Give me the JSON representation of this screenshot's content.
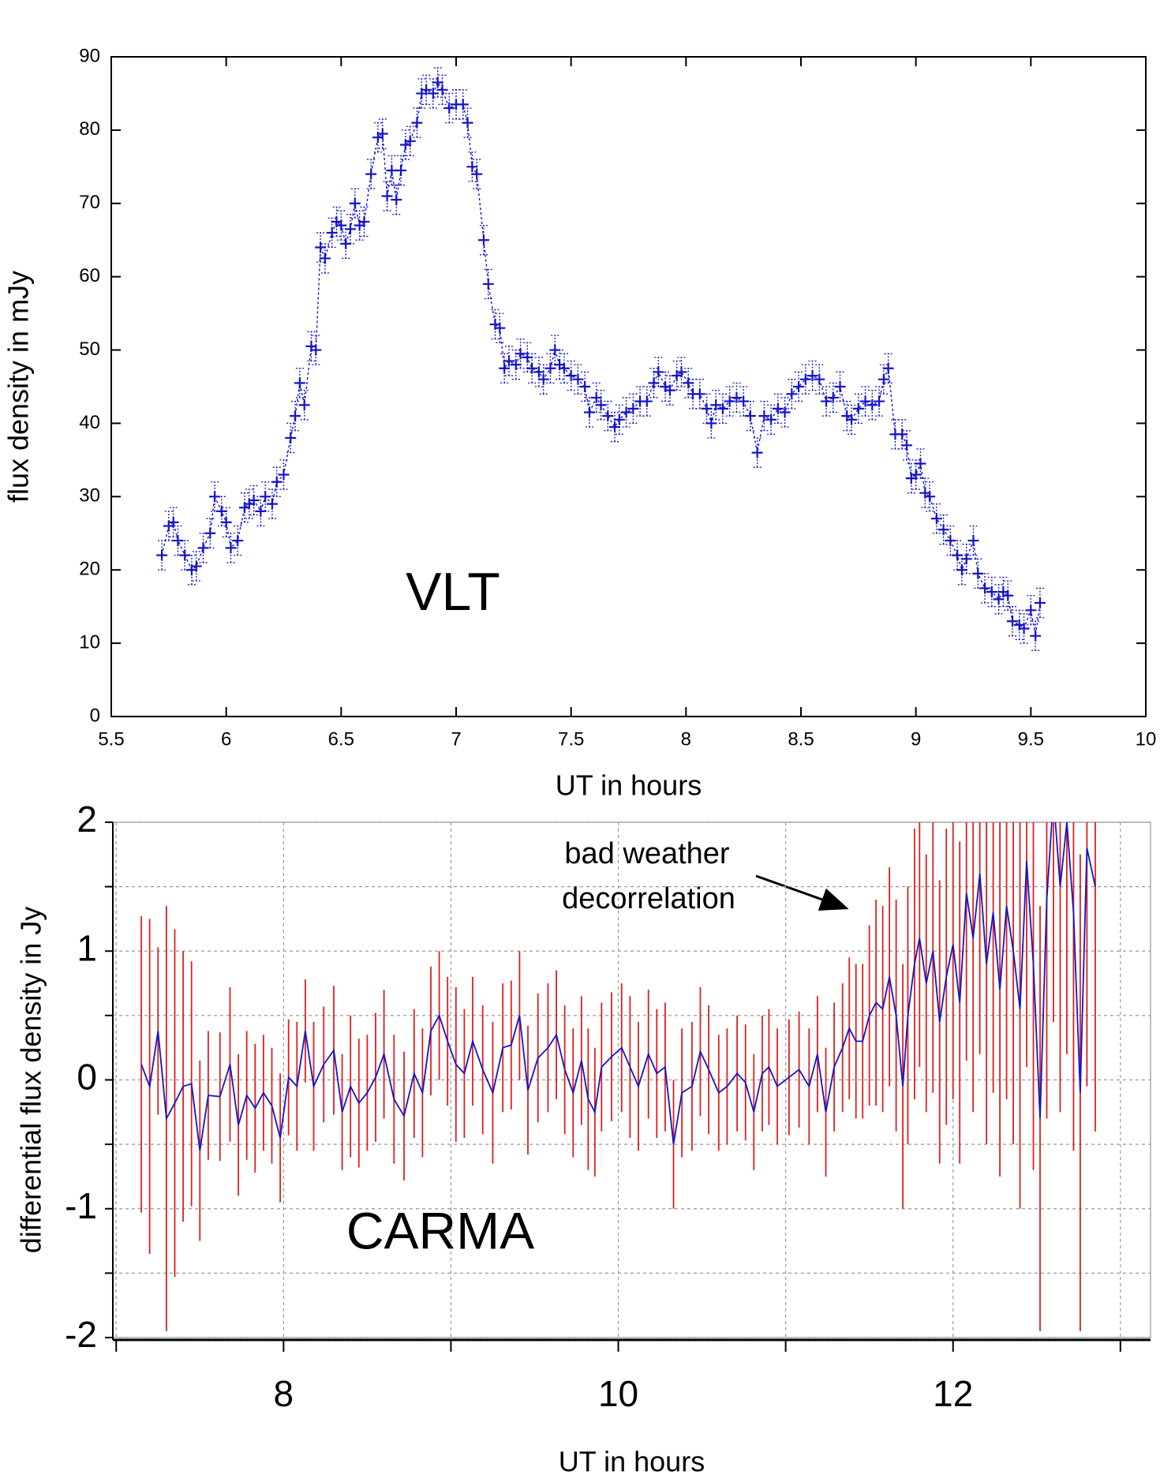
{
  "chart_data": [
    {
      "type": "line",
      "xlabel": "UT in hours",
      "ylabel": "flux density in mJy",
      "label": "VLT",
      "xlim": [
        5.5,
        10
      ],
      "xticks": [
        5.5,
        6,
        6.5,
        7,
        7.5,
        8,
        8.5,
        9,
        9.5,
        10
      ],
      "ylim": [
        0,
        90
      ],
      "yticks": [
        0,
        10,
        20,
        30,
        40,
        50,
        60,
        70,
        80,
        90
      ],
      "grid": false,
      "x": [
        5.72,
        5.75,
        5.77,
        5.79,
        5.82,
        5.85,
        5.87,
        5.9,
        5.93,
        5.95,
        5.98,
        6.0,
        6.02,
        6.05,
        6.08,
        6.1,
        6.12,
        6.15,
        6.17,
        6.2,
        6.22,
        6.25,
        6.28,
        6.3,
        6.32,
        6.34,
        6.37,
        6.39,
        6.41,
        6.43,
        6.46,
        6.48,
        6.5,
        6.52,
        6.54,
        6.56,
        6.58,
        6.6,
        6.63,
        6.66,
        6.68,
        6.7,
        6.72,
        6.74,
        6.76,
        6.78,
        6.8,
        6.83,
        6.85,
        6.87,
        6.9,
        6.92,
        6.94,
        6.97,
        7.0,
        7.03,
        7.05,
        7.07,
        7.09,
        7.12,
        7.14,
        7.17,
        7.19,
        7.21,
        7.23,
        7.26,
        7.28,
        7.31,
        7.33,
        7.36,
        7.38,
        7.41,
        7.43,
        7.45,
        7.47,
        7.5,
        7.53,
        7.56,
        7.58,
        7.61,
        7.63,
        7.66,
        7.69,
        7.71,
        7.74,
        7.77,
        7.8,
        7.83,
        7.86,
        7.88,
        7.91,
        7.93,
        7.96,
        7.98,
        8.01,
        8.03,
        8.06,
        8.09,
        8.11,
        8.13,
        8.16,
        8.19,
        8.22,
        8.25,
        8.28,
        8.31,
        8.34,
        8.37,
        8.4,
        8.43,
        8.46,
        8.49,
        8.52,
        8.55,
        8.58,
        8.61,
        8.64,
        8.67,
        8.7,
        8.72,
        8.75,
        8.78,
        8.81,
        8.84,
        8.86,
        8.88,
        8.91,
        8.94,
        8.96,
        8.98,
        9.0,
        9.02,
        9.04,
        9.06,
        9.09,
        9.12,
        9.15,
        9.18,
        9.2,
        9.22,
        9.25,
        9.27,
        9.3,
        9.33,
        9.36,
        9.38,
        9.4,
        9.42,
        9.45,
        9.47,
        9.5,
        9.52,
        9.54
      ],
      "series": [
        {
          "color": "#1414c8",
          "yerr": 2,
          "values": [
            22,
            26,
            26.5,
            24,
            22,
            20,
            20.5,
            23,
            25,
            30,
            28,
            26.5,
            23,
            24,
            28.5,
            29,
            29.5,
            28,
            30,
            29,
            32,
            33,
            38,
            41,
            45.5,
            42.5,
            50.5,
            50,
            64,
            62.5,
            66,
            67.5,
            67,
            64.5,
            66.5,
            70,
            67,
            67.5,
            74,
            79,
            79.5,
            71,
            74.5,
            70.5,
            74.5,
            78,
            78.5,
            81,
            85,
            85.5,
            85,
            86.5,
            85.5,
            83,
            83.5,
            83.5,
            81,
            75,
            74,
            65,
            59,
            53.5,
            53,
            47.5,
            48.5,
            48,
            49.5,
            49,
            47.5,
            47,
            46,
            47.5,
            50,
            48,
            47.5,
            46.5,
            46,
            45,
            41.5,
            43.5,
            42.5,
            41,
            39.5,
            40.5,
            41.5,
            42,
            43,
            43,
            45.5,
            47,
            45,
            44.5,
            46.5,
            47,
            45.5,
            44,
            44,
            42,
            40,
            42.5,
            42,
            43,
            43.5,
            43,
            41,
            36,
            41,
            40.5,
            42,
            41.5,
            44,
            45,
            46,
            46.5,
            46,
            43,
            43.5,
            45,
            41,
            40.5,
            42,
            43,
            42.5,
            43,
            46,
            47.5,
            38.5,
            38.5,
            37,
            32.5,
            33,
            34.5,
            30.5,
            30,
            27,
            25.5,
            24,
            22,
            20,
            21.5,
            24,
            19.5,
            17.5,
            17,
            16,
            17,
            16.5,
            13,
            12.5,
            12,
            14.5,
            11,
            15.5
          ]
        }
      ]
    },
    {
      "type": "line",
      "xlabel": "UT in hours",
      "ylabel": "differential flux density in Jy",
      "label": "CARMA",
      "annotation": [
        "bad weather",
        "decorrelation"
      ],
      "xlim": [
        6.98,
        13.18
      ],
      "xticks": [
        8,
        10,
        12
      ],
      "xminor": [
        7,
        9,
        11,
        13
      ],
      "ylim": [
        -2,
        2
      ],
      "yticks": [
        -2,
        -1,
        0,
        1,
        2
      ],
      "yminor": [
        -1.5,
        -0.5,
        0.5,
        1.5
      ],
      "grid": true,
      "x": [
        7.15,
        7.2,
        7.25,
        7.3,
        7.35,
        7.4,
        7.45,
        7.5,
        7.55,
        7.62,
        7.68,
        7.73,
        7.78,
        7.83,
        7.88,
        7.93,
        7.98,
        8.03,
        8.08,
        8.13,
        8.18,
        8.24,
        8.3,
        8.35,
        8.4,
        8.45,
        8.5,
        8.55,
        8.6,
        8.66,
        8.72,
        8.78,
        8.83,
        8.88,
        8.93,
        8.98,
        9.03,
        9.08,
        9.13,
        9.19,
        9.25,
        9.31,
        9.36,
        9.41,
        9.46,
        9.52,
        9.58,
        9.63,
        9.68,
        9.73,
        9.78,
        9.82,
        9.86,
        9.9,
        9.96,
        10.02,
        10.07,
        10.12,
        10.18,
        10.23,
        10.28,
        10.33,
        10.38,
        10.44,
        10.49,
        10.54,
        10.6,
        10.65,
        10.71,
        10.76,
        10.81,
        10.86,
        10.9,
        10.95,
        11.02,
        11.08,
        11.14,
        11.19,
        11.24,
        11.29,
        11.34,
        11.38,
        11.42,
        11.46,
        11.5,
        11.54,
        11.58,
        11.62,
        11.66,
        11.7,
        11.73,
        11.77,
        11.8,
        11.84,
        11.88,
        11.92,
        11.96,
        12.0,
        12.04,
        12.08,
        12.12,
        12.16,
        12.2,
        12.24,
        12.28,
        12.32,
        12.36,
        12.4,
        12.44,
        12.48,
        12.52,
        12.56,
        12.6,
        12.64,
        12.68,
        12.72,
        12.76,
        12.8,
        12.85
      ],
      "series": [
        {
          "color": "#1414c8",
          "error_color": "#dd2020",
          "values": [
            0.12,
            -0.05,
            0.38,
            -0.3,
            -0.18,
            -0.05,
            -0.03,
            -0.55,
            -0.12,
            -0.13,
            0.12,
            -0.35,
            -0.12,
            -0.22,
            -0.1,
            -0.2,
            -0.45,
            0.02,
            -0.05,
            0.38,
            -0.05,
            0.12,
            0.23,
            -0.25,
            -0.05,
            -0.18,
            -0.1,
            0.02,
            0.2,
            -0.15,
            -0.28,
            0.05,
            -0.1,
            0.38,
            0.5,
            0.3,
            0.12,
            0.05,
            0.3,
            0.08,
            -0.1,
            0.25,
            0.27,
            0.5,
            -0.08,
            0.17,
            0.25,
            0.35,
            0.08,
            -0.1,
            0.15,
            -0.15,
            -0.25,
            0.1,
            0.18,
            0.25,
            0.1,
            -0.05,
            0.2,
            0.05,
            0.1,
            -0.5,
            -0.1,
            -0.05,
            0.22,
            0.08,
            -0.1,
            -0.05,
            0.05,
            -0.02,
            -0.25,
            0.05,
            0.1,
            -0.05,
            0.02,
            0.08,
            -0.05,
            0.2,
            -0.25,
            0.1,
            0.25,
            0.4,
            0.3,
            0.3,
            0.5,
            0.6,
            0.55,
            0.8,
            0.5,
            -0.05,
            0.5,
            0.9,
            1.1,
            0.75,
            1.0,
            0.45,
            0.8,
            1.05,
            0.6,
            1.45,
            1.1,
            1.6,
            0.9,
            1.3,
            0.7,
            1.35,
            1.0,
            0.55,
            1.7,
            0.9,
            -0.3,
            1.4,
            2.2,
            1.5,
            2.0,
            1.3,
            -0.1,
            1.8,
            1.5
          ],
          "errors": [
            1.15,
            1.3,
            0.65,
            1.65,
            1.35,
            1.05,
            0.95,
            0.7,
            0.5,
            0.5,
            0.6,
            0.55,
            0.5,
            0.5,
            0.45,
            0.45,
            0.5,
            0.45,
            0.5,
            0.4,
            0.5,
            0.45,
            0.5,
            0.45,
            0.55,
            0.5,
            0.45,
            0.5,
            0.5,
            0.5,
            0.5,
            0.5,
            0.5,
            0.5,
            0.5,
            0.5,
            0.6,
            0.5,
            0.5,
            0.5,
            0.55,
            0.5,
            0.5,
            0.5,
            0.5,
            0.5,
            0.5,
            0.5,
            0.5,
            0.5,
            0.5,
            0.55,
            0.5,
            0.5,
            0.5,
            0.5,
            0.55,
            0.5,
            0.5,
            0.5,
            0.5,
            0.5,
            0.5,
            0.5,
            0.5,
            0.5,
            0.45,
            0.45,
            0.45,
            0.45,
            0.45,
            0.45,
            0.45,
            0.45,
            0.45,
            0.45,
            0.45,
            0.45,
            0.5,
            0.5,
            0.5,
            0.55,
            0.6,
            0.6,
            0.7,
            0.8,
            0.8,
            0.85,
            0.9,
            0.95,
            1.0,
            1.05,
            1.0,
            1.0,
            1.1,
            1.1,
            1.15,
            1.2,
            1.25,
            1.3,
            1.35,
            1.4,
            1.4,
            1.4,
            1.45,
            1.5,
            1.5,
            1.55,
            1.6,
            1.6,
            1.65,
            1.7,
            1.75,
            1.75,
            1.8,
            1.85,
            1.85,
            1.85,
            1.9
          ]
        }
      ]
    }
  ]
}
